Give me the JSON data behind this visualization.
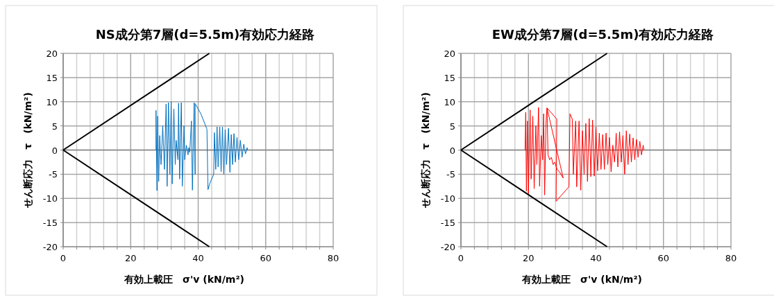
{
  "chart_data": [
    {
      "type": "line",
      "title": "NS成分第7層(d=5.5m)有効応力経路",
      "xlabel": "有効上載圧　σ'v (kN/m²)",
      "ylabel": "せん断応力　τ　(kN/m²)",
      "xlim": [
        0,
        80
      ],
      "ylim": [
        -20,
        20
      ],
      "grid": true,
      "xticks": [
        0,
        {
          "value": 4,
          "label": null
        },
        {
          "value": 8,
          "label": null
        },
        {
          "value": 12,
          "label": null
        },
        {
          "value": 16,
          "label": null
        },
        20,
        {
          "value": 24,
          "label": null
        },
        {
          "value": 28,
          "label": null
        },
        {
          "value": 32,
          "label": null
        },
        {
          "value": 36,
          "label": null
        },
        40,
        {
          "value": 44,
          "label": null
        },
        {
          "value": 48,
          "label": null
        },
        {
          "value": 52,
          "label": null
        },
        {
          "value": 56,
          "label": null
        },
        60,
        {
          "value": 64,
          "label": null
        },
        {
          "value": 68,
          "label": null
        },
        {
          "value": 72,
          "label": null
        },
        {
          "value": 76,
          "label": null
        },
        80
      ],
      "yticks": [
        -20,
        -15,
        -10,
        -5,
        0,
        5,
        10,
        15,
        20
      ],
      "series": [
        {
          "color": "#0070c0",
          "x": [
            27.5,
            27.5,
            27.8,
            28.0,
            28.3,
            28.6,
            29,
            29.5,
            30,
            30.5,
            30.8,
            31.2,
            31.6,
            32,
            32.3,
            32.8,
            33.2,
            33.5,
            34,
            34.2,
            34.5,
            35,
            35.3,
            35.8,
            36,
            36.5,
            37,
            37.2,
            37.5,
            38,
            38.3,
            38.8,
            39.1,
            39.1,
            40.8,
            42.6,
            42.9,
            43.5,
            44.6,
            44.8,
            45.2,
            45.6,
            45.9,
            46.4,
            46.8,
            47.2,
            47.6,
            48,
            48.4,
            49,
            49.4,
            49.8,
            50.2,
            50.6,
            51,
            51.5,
            52,
            52.5,
            53,
            53.5,
            54,
            54.5,
            54.6
          ],
          "values": [
            0,
            8.2,
            -8.4,
            7.0,
            -6.5,
            3,
            -3,
            5,
            -4,
            9.5,
            -7.5,
            9.8,
            -5,
            10,
            -7,
            8.5,
            -3,
            2,
            -2,
            9.7,
            -6,
            9.8,
            -7.5,
            5,
            -2,
            1,
            -1,
            0.5,
            -0.5,
            6,
            -8.3,
            9.8,
            -5,
            9.6,
            7.5,
            4.3,
            -8.2,
            -6.8,
            -5,
            3.6,
            -4,
            4.8,
            -3.5,
            4.8,
            -4.5,
            4.8,
            -5,
            4.2,
            -3,
            4.5,
            -4.6,
            3.2,
            -3,
            3.4,
            -2.5,
            2.6,
            -2,
            2,
            -1.5,
            1.2,
            -0.8,
            0.5,
            0
          ]
        },
        {
          "color": "#000000",
          "x": [
            0,
            43.3
          ],
          "values": [
            0,
            20
          ]
        },
        {
          "color": "#000000",
          "x": [
            0,
            43.3
          ],
          "values": [
            0,
            -20
          ]
        }
      ]
    },
    {
      "type": "line",
      "title": "EW成分第7層(d=5.5m)有効応力経路",
      "xlabel": "有効上載圧　σ'v (kN/m²)",
      "ylabel": "せん断応力　τ　(kN/m²)",
      "xlim": [
        0,
        80
      ],
      "ylim": [
        -20,
        20
      ],
      "grid": true,
      "xticks": [
        0,
        {
          "value": 4,
          "label": null
        },
        {
          "value": 8,
          "label": null
        },
        {
          "value": 12,
          "label": null
        },
        {
          "value": 16,
          "label": null
        },
        20,
        {
          "value": 24,
          "label": null
        },
        {
          "value": 28,
          "label": null
        },
        {
          "value": 32,
          "label": null
        },
        {
          "value": 36,
          "label": null
        },
        40,
        {
          "value": 44,
          "label": null
        },
        {
          "value": 48,
          "label": null
        },
        {
          "value": 52,
          "label": null
        },
        {
          "value": 56,
          "label": null
        },
        60,
        {
          "value": 64,
          "label": null
        },
        {
          "value": 68,
          "label": null
        },
        {
          "value": 72,
          "label": null
        },
        {
          "value": 76,
          "label": null
        },
        80
      ],
      "yticks": [
        -20,
        -15,
        -10,
        -5,
        0,
        5,
        10,
        15,
        20
      ],
      "series": [
        {
          "color": "#ff0000",
          "x": [
            19.0,
            19.2,
            19.4,
            19.7,
            20,
            20.5,
            20.8,
            21.3,
            21.7,
            22.2,
            22.5,
            23,
            23.3,
            23.8,
            24.2,
            24.5,
            24.8,
            25.2,
            25.5,
            25.8,
            26.3,
            26.8,
            27.3,
            27.8,
            28.5,
            29.2,
            30,
            30.3,
            25.5,
            28.4,
            28.2,
            32.0,
            32.3,
            33,
            33.3,
            34,
            34.3,
            35,
            35.5,
            36,
            36.5,
            37,
            37.5,
            38,
            38.5,
            39,
            39.5,
            40,
            40.5,
            41,
            41.5,
            42,
            42.5,
            43,
            43.5,
            44,
            44.5,
            45,
            45.5,
            46,
            46.5,
            47,
            47.5,
            48,
            48.5,
            49,
            49.5,
            50,
            50.5,
            51,
            51.5,
            52,
            52.5,
            53,
            53.5,
            54,
            54.2
          ],
          "values": [
            0,
            7.8,
            -8.5,
            6,
            -9,
            8.3,
            -6,
            7,
            -8,
            5,
            -3,
            8.8,
            -7.5,
            3,
            -2,
            7.5,
            -9.3,
            5.5,
            8.7,
            -1,
            -2,
            -1.5,
            -3,
            -2.5,
            -4,
            -4.5,
            -5.5,
            -5.8,
            8.7,
            6.4,
            -10.6,
            -7.6,
            7.5,
            6.4,
            -5,
            6,
            -7.6,
            6,
            -8.3,
            4,
            -5,
            5.5,
            -6.5,
            6.5,
            -5.5,
            6.2,
            -5.4,
            4.8,
            -4.3,
            3.5,
            -4,
            3.2,
            -4,
            3.5,
            -3,
            2.6,
            -4.5,
            1,
            -2.5,
            3.5,
            -3.5,
            3.8,
            -2.5,
            3,
            -5,
            4,
            -3,
            3.3,
            -2.5,
            2.5,
            -2,
            2.2,
            -1.5,
            1.8,
            -1,
            1,
            0
          ]
        },
        {
          "color": "#000000",
          "x": [
            0,
            43.3
          ],
          "values": [
            0,
            20
          ]
        },
        {
          "color": "#000000",
          "x": [
            0,
            43.3
          ],
          "values": [
            0,
            -20
          ]
        }
      ]
    }
  ]
}
